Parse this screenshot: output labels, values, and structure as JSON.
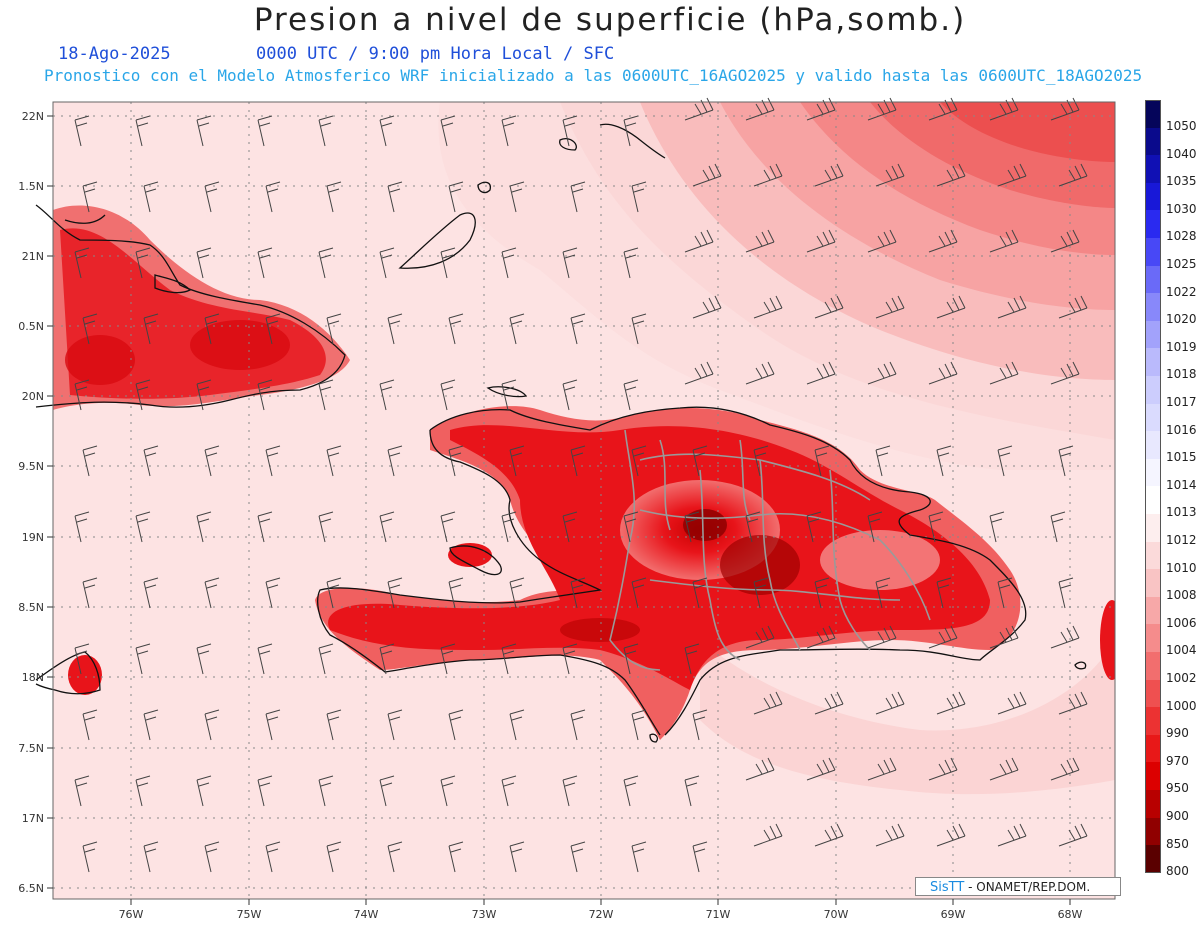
{
  "header": {
    "title": "Presion a nivel de superficie (hPa,somb.)",
    "date": "18-Ago-2025",
    "time": "0000 UTC / 9:00 pm Hora Local / SFC",
    "model_line": "Pronostico con el Modelo Atmosferico WRF inicializado a las 0600UTC_16AGO2025 y valido hasta las  0600UTC_18AGO2025"
  },
  "map": {
    "lat_labels": [
      "22N",
      "1.5N",
      "21N",
      "0.5N",
      "20N",
      "9.5N",
      "19N",
      "8.5N",
      "18N",
      "7.5N",
      "17N",
      "6.5N"
    ],
    "lon_labels": [
      "76W",
      "75W",
      "74W",
      "73W",
      "72W",
      "71W",
      "70W",
      "69W",
      "68W"
    ],
    "background_color": "#fde3e3",
    "low_pressure_color": "#e8141a"
  },
  "legend": {
    "levels": [
      "1050",
      "1040",
      "1035",
      "1030",
      "1028",
      "1025",
      "1022",
      "1020",
      "1019",
      "1018",
      "1017",
      "1016",
      "1015",
      "1014",
      "1013",
      "1012",
      "1010",
      "1008",
      "1006",
      "1004",
      "1002",
      "1000",
      "990",
      "970",
      "950",
      "900",
      "850",
      "800"
    ],
    "colors": [
      "#05055a",
      "#0a0a8c",
      "#1010b4",
      "#1818d8",
      "#2a2af0",
      "#4848f6",
      "#6a6af8",
      "#8888fa",
      "#a2a2fb",
      "#babafc",
      "#cccdfd",
      "#dadbfe",
      "#e8e8fe",
      "#f5f5ff",
      "#ffffff",
      "#fdeeee",
      "#fbdada",
      "#f9c4c4",
      "#f7a8a8",
      "#f58c8c",
      "#f26e6e",
      "#ef5050",
      "#ec3232",
      "#e81818",
      "#dc0000",
      "#b80000",
      "#900000",
      "#5a0000"
    ]
  },
  "credit": {
    "brand": "SisTT",
    "org": " - ONAMET/REP.DOM."
  }
}
